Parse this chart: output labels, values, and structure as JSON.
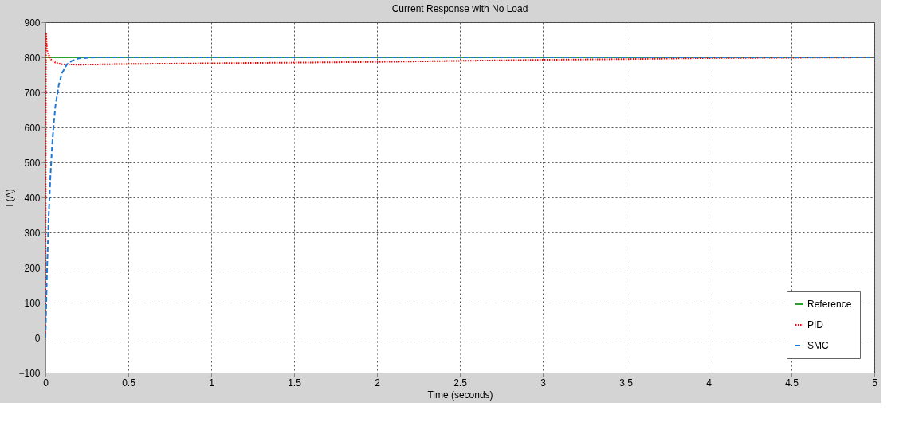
{
  "chart_data": {
    "type": "line",
    "title": "Current Response with No Load",
    "xlabel": "Time (seconds)",
    "ylabel": "I (A)",
    "xlim": [
      0,
      5
    ],
    "xticks": [
      0,
      0.5,
      1,
      1.5,
      2,
      2.5,
      3,
      3.5,
      4,
      4.5,
      5
    ],
    "ylim": [
      -100,
      900
    ],
    "yticks": [
      -100,
      0,
      100,
      200,
      300,
      400,
      500,
      600,
      700,
      800,
      900
    ],
    "grid": true,
    "legend": "bottom right",
    "series": [
      {
        "name": "Reference",
        "color": "#2ca02c",
        "line_style": "solid",
        "x": [
          0,
          5
        ],
        "values": [
          800,
          800
        ]
      },
      {
        "name": "PID",
        "color": "#ff0000",
        "line_style": "dotted",
        "x": [
          0,
          0.003,
          0.01,
          0.03,
          0.06,
          0.1,
          0.2,
          0.5,
          1,
          1.5,
          2,
          2.5,
          3,
          3.5,
          4,
          4.5,
          5
        ],
        "values": [
          0,
          870,
          820,
          795,
          785,
          780,
          779,
          781,
          783,
          785,
          787,
          790,
          793,
          795,
          798,
          799,
          800
        ]
      },
      {
        "name": "SMC",
        "color": "#1f77d4",
        "line_style": "dashed",
        "x": [
          0,
          0.01,
          0.02,
          0.03,
          0.04,
          0.05,
          0.06,
          0.08,
          0.1,
          0.13,
          0.16,
          0.2,
          0.3,
          5
        ],
        "values": [
          0,
          200,
          350,
          460,
          545,
          610,
          660,
          720,
          755,
          780,
          790,
          797,
          800,
          800
        ]
      }
    ]
  }
}
